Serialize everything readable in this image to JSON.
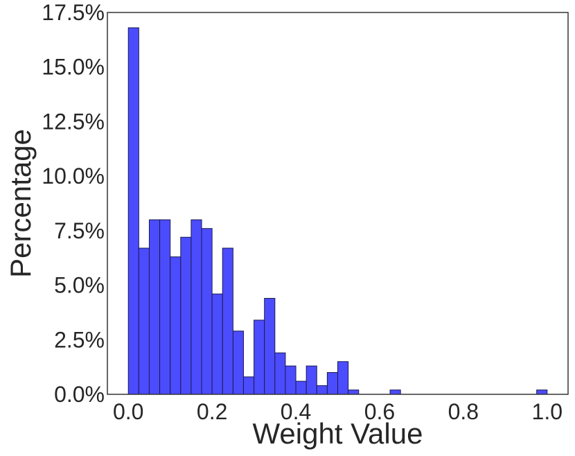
{
  "chart_data": {
    "type": "bar",
    "title": "",
    "xlabel": "Weight Value",
    "ylabel": "Percentage",
    "xlim": [
      -0.05,
      1.05
    ],
    "ylim": [
      0,
      17.5
    ],
    "bin_width": 0.025,
    "x": [
      0.0,
      0.025,
      0.05,
      0.075,
      0.1,
      0.125,
      0.15,
      0.175,
      0.2,
      0.225,
      0.25,
      0.275,
      0.3,
      0.325,
      0.35,
      0.375,
      0.4,
      0.425,
      0.45,
      0.475,
      0.5,
      0.525,
      0.625,
      0.975
    ],
    "values": [
      16.8,
      6.7,
      8.0,
      8.0,
      6.3,
      7.2,
      8.0,
      7.6,
      4.6,
      6.7,
      2.9,
      0.8,
      3.4,
      4.4,
      1.9,
      1.3,
      0.6,
      1.3,
      0.4,
      1.0,
      1.5,
      0.2,
      0.2,
      0.2
    ],
    "xticks": [
      0.0,
      0.2,
      0.4,
      0.6,
      0.8,
      1.0
    ],
    "xtick_labels": [
      "0.0",
      "0.2",
      "0.4",
      "0.6",
      "0.8",
      "1.0"
    ],
    "yticks": [
      0,
      2.5,
      5,
      7.5,
      10,
      12.5,
      15,
      17.5
    ],
    "ytick_labels": [
      "0.0%",
      "2.5%",
      "5.0%",
      "7.5%",
      "10.0%",
      "12.5%",
      "15.0%",
      "17.5%"
    ],
    "grid": false,
    "colors": {
      "bar_fill": "#4c4cff",
      "bar_edge": "#1a1a4d",
      "axes": "#333333",
      "text": "#262626"
    }
  }
}
